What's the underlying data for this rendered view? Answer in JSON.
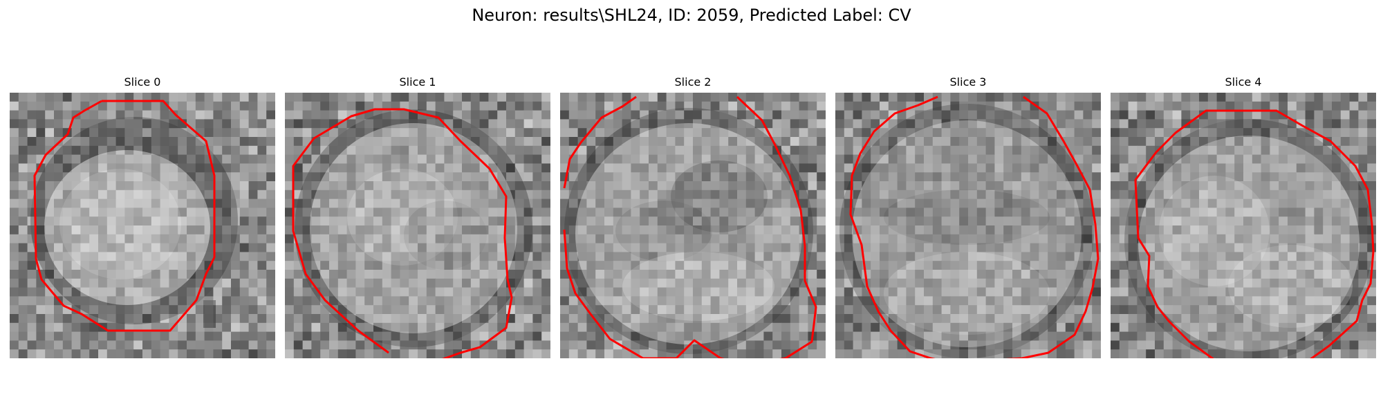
{
  "figure": {
    "title": "Neuron: results\\SHL24, ID: 2059, Predicted Label: CV"
  },
  "contour_color": "#ff0000",
  "slices": [
    {
      "title": "Slice 0"
    },
    {
      "title": "Slice 1"
    },
    {
      "title": "Slice 2"
    },
    {
      "title": "Slice 3"
    },
    {
      "title": "Slice 4"
    }
  ]
}
